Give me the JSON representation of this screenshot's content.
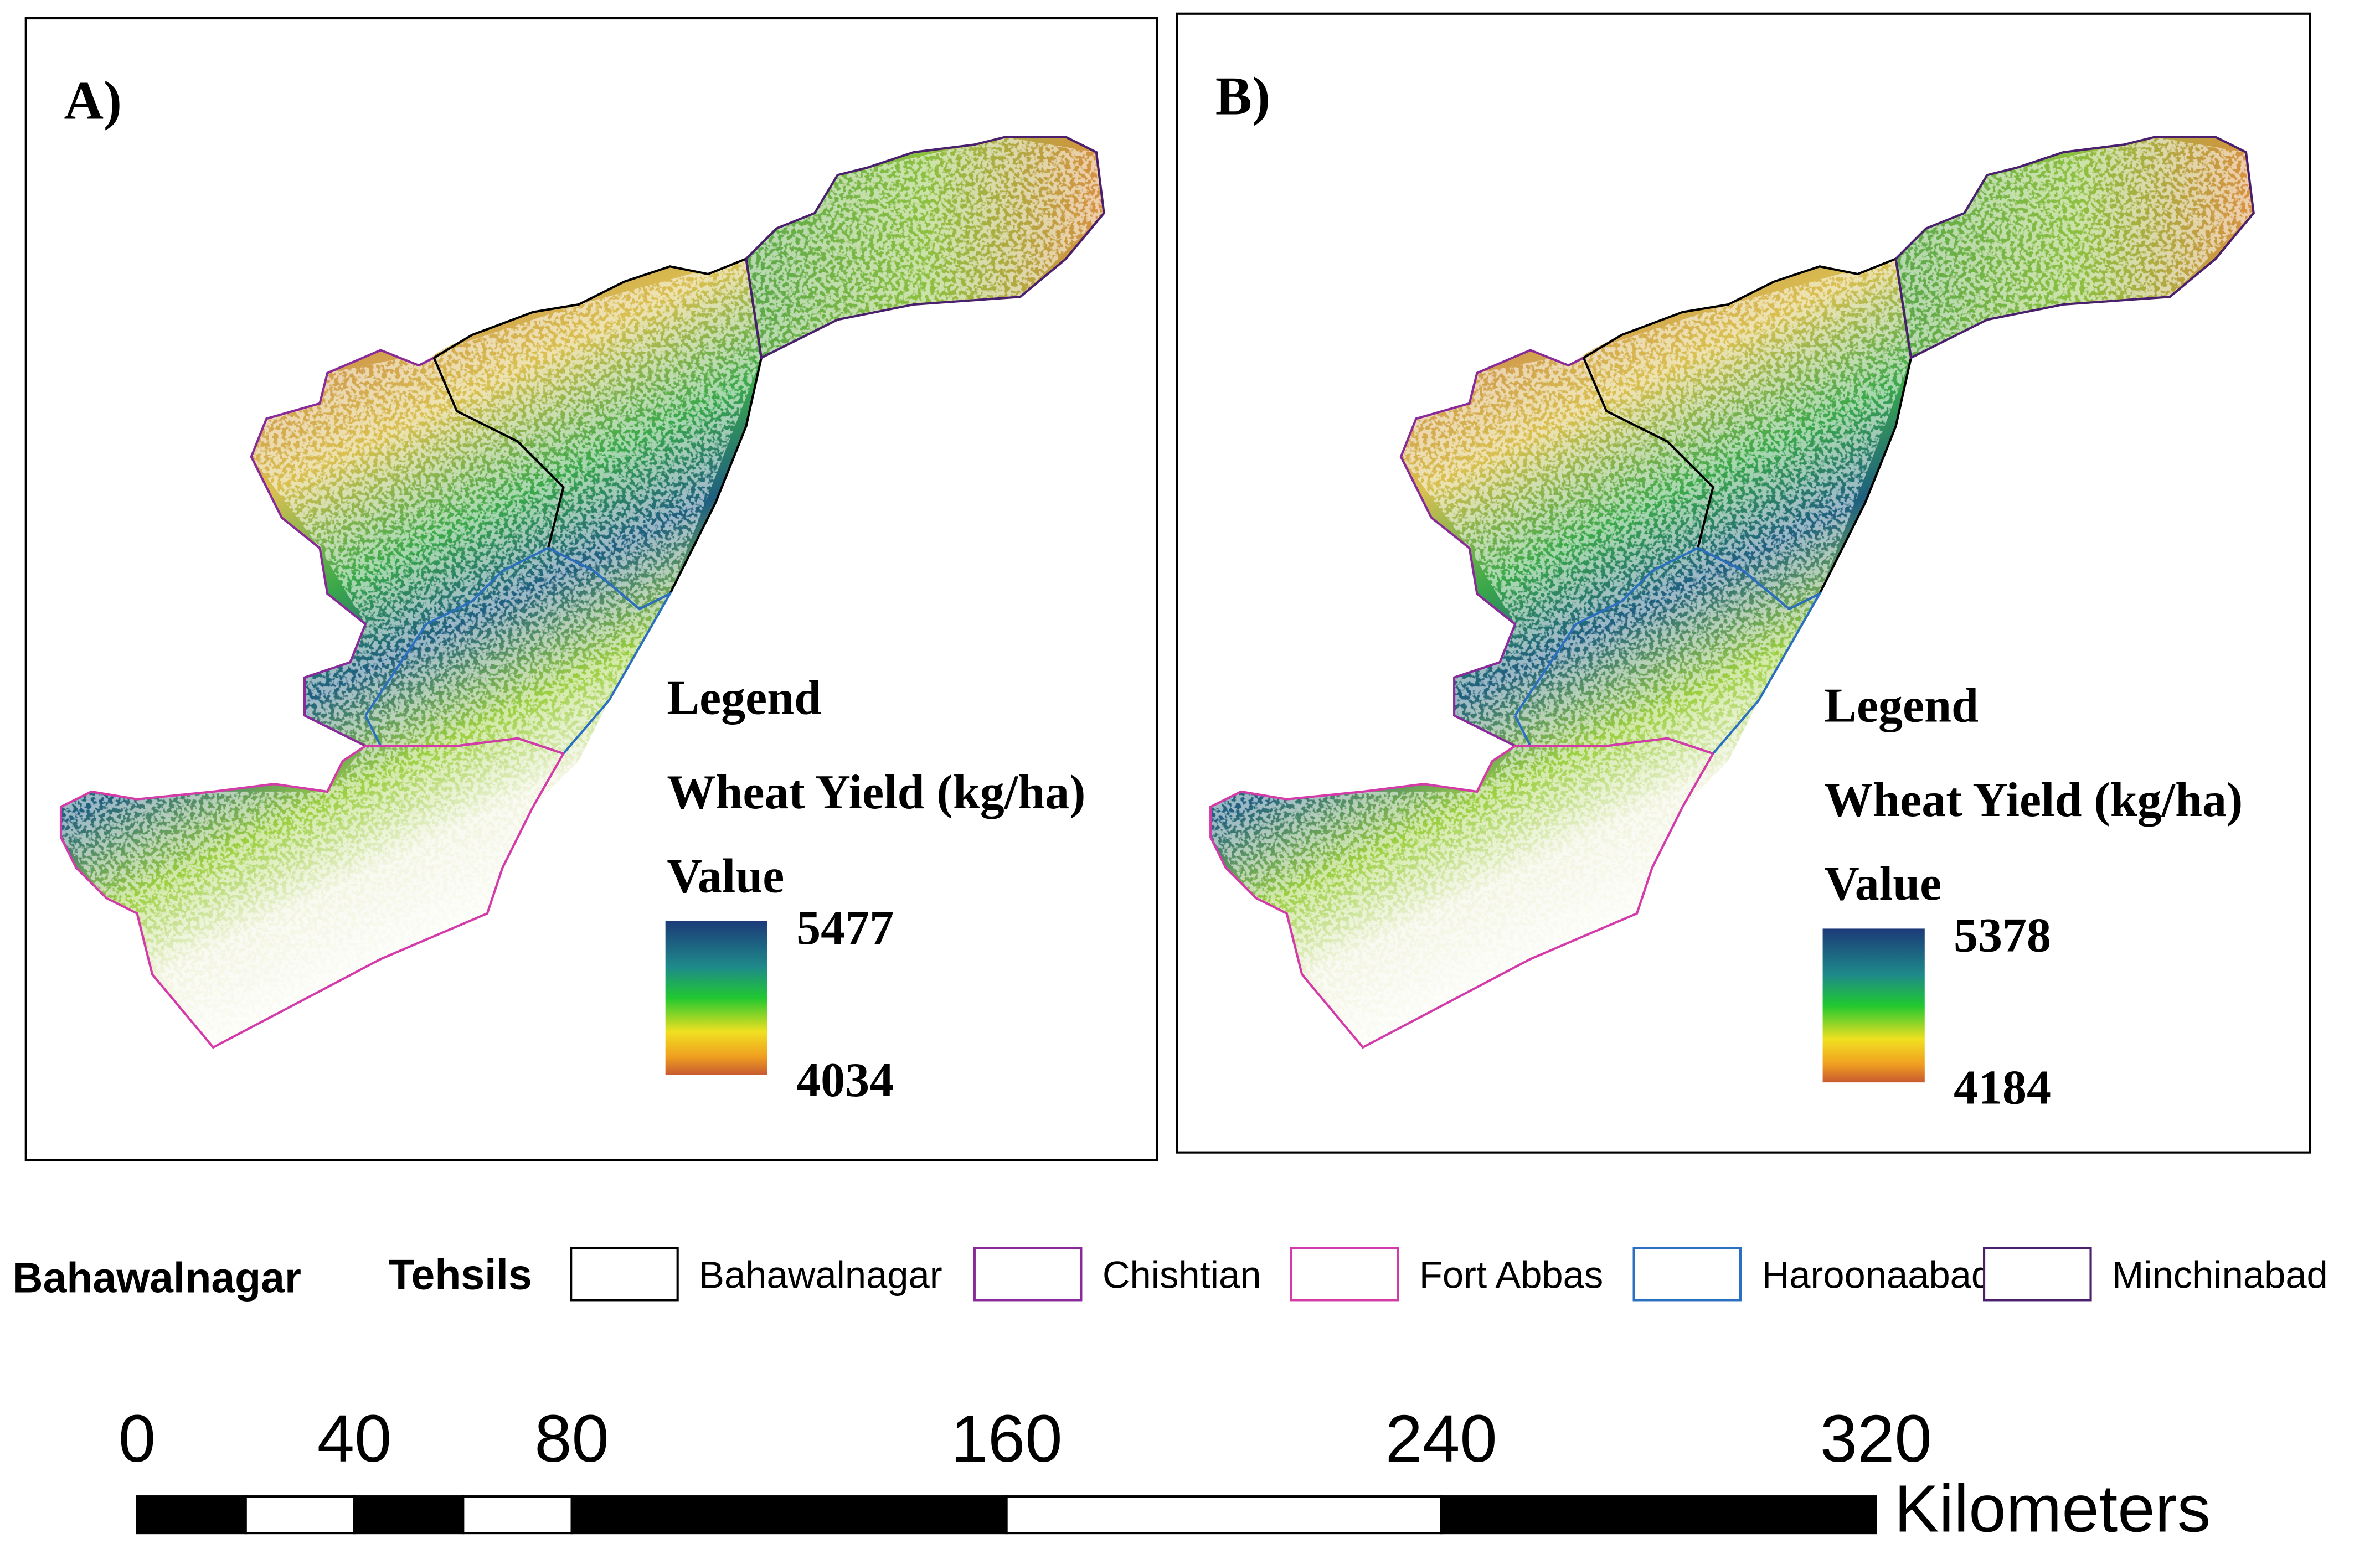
{
  "panels": [
    {
      "label": "A)",
      "legend": {
        "title": "Legend",
        "field": "Wheat Yield (kg/ha)",
        "value_label": "Value",
        "max": 5477,
        "min": 4034
      }
    },
    {
      "label": "B)",
      "legend": {
        "title": "Legend",
        "field": "Wheat Yield (kg/ha)",
        "value_label": "Value",
        "max": 5378,
        "min": 4184
      }
    }
  ],
  "tehsil_legend": {
    "title": "Bahawalnagar",
    "subtitle": "Tehsils",
    "items": [
      {
        "name": "Bahawalnagar",
        "color": "#000000"
      },
      {
        "name": "Chishtian",
        "color": "#8a2a9a"
      },
      {
        "name": "Fort Abbas",
        "color": "#d43aa8"
      },
      {
        "name": "Haroonaabad",
        "color": "#2a6fc0"
      },
      {
        "name": "Minchinabad",
        "color": "#4a1f6e"
      }
    ]
  },
  "scale_bar": {
    "ticks": [
      0,
      40,
      80,
      160,
      240,
      320
    ],
    "unit": "Kilometers"
  }
}
